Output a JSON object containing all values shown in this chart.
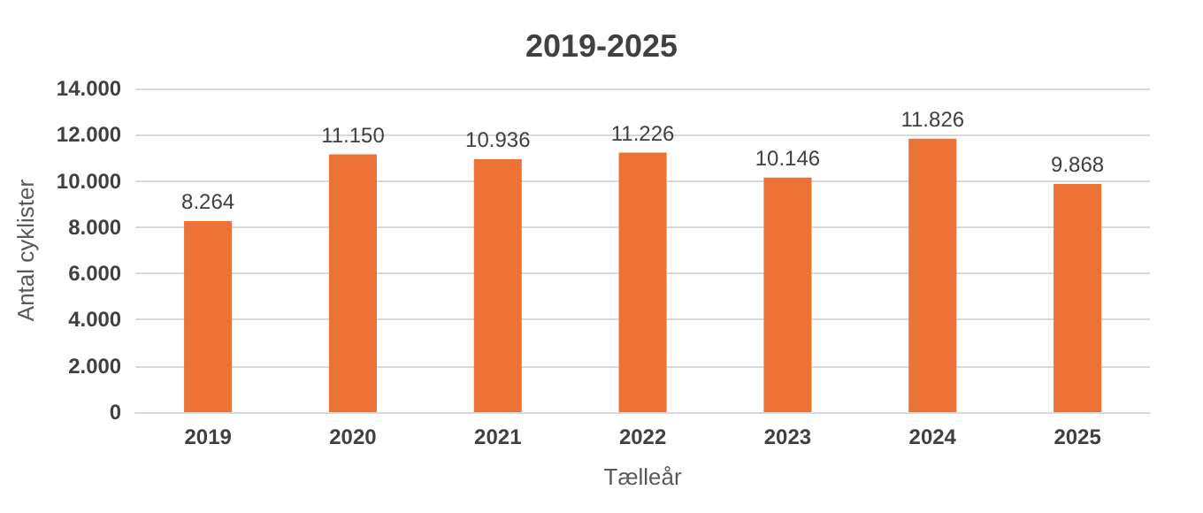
{
  "chart_data": {
    "type": "bar",
    "title": "2019-2025",
    "xlabel": "Tælleår",
    "ylabel": "Antal cyklister",
    "categories": [
      "2019",
      "2020",
      "2021",
      "2022",
      "2023",
      "2024",
      "2025"
    ],
    "values": [
      8264,
      11150,
      10936,
      11226,
      10146,
      11826,
      9868
    ],
    "value_labels": [
      "8.264",
      "11.150",
      "10.936",
      "11.226",
      "10.146",
      "11.826",
      "9.868"
    ],
    "color": "#ed7236",
    "ylim": [
      0,
      14000
    ],
    "yticks": [
      {
        "value": 0,
        "label": "0"
      },
      {
        "value": 2000,
        "label": "2.000"
      },
      {
        "value": 4000,
        "label": "4.000"
      },
      {
        "value": 6000,
        "label": "6.000"
      },
      {
        "value": 8000,
        "label": "8.000"
      },
      {
        "value": 10000,
        "label": "10.000"
      },
      {
        "value": 12000,
        "label": "12.000"
      },
      {
        "value": 14000,
        "label": "14.000"
      }
    ],
    "grid": "y"
  }
}
